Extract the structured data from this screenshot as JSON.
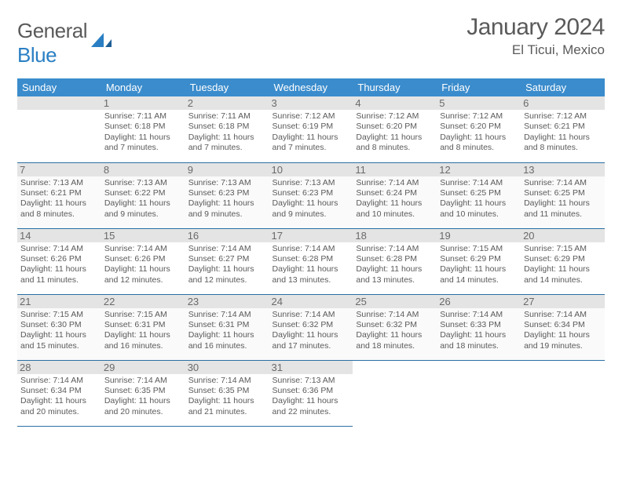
{
  "logo": {
    "text_a": "General",
    "text_b": "Blue"
  },
  "title": "January 2024",
  "location": "El Ticui, Mexico",
  "colors": {
    "header_bg": "#3b8ccc",
    "header_fg": "#ffffff",
    "rule": "#2a6fa5",
    "text": "#5a5a5a",
    "daybg": "#e4e4e4"
  },
  "weekdays": [
    "Sunday",
    "Monday",
    "Tuesday",
    "Wednesday",
    "Thursday",
    "Friday",
    "Saturday"
  ],
  "weeks": [
    [
      null,
      {
        "n": "1",
        "sr": "7:11 AM",
        "ss": "6:18 PM",
        "dl": "11 hours and 7 minutes."
      },
      {
        "n": "2",
        "sr": "7:11 AM",
        "ss": "6:18 PM",
        "dl": "11 hours and 7 minutes."
      },
      {
        "n": "3",
        "sr": "7:12 AM",
        "ss": "6:19 PM",
        "dl": "11 hours and 7 minutes."
      },
      {
        "n": "4",
        "sr": "7:12 AM",
        "ss": "6:20 PM",
        "dl": "11 hours and 8 minutes."
      },
      {
        "n": "5",
        "sr": "7:12 AM",
        "ss": "6:20 PM",
        "dl": "11 hours and 8 minutes."
      },
      {
        "n": "6",
        "sr": "7:12 AM",
        "ss": "6:21 PM",
        "dl": "11 hours and 8 minutes."
      }
    ],
    [
      {
        "n": "7",
        "sr": "7:13 AM",
        "ss": "6:21 PM",
        "dl": "11 hours and 8 minutes."
      },
      {
        "n": "8",
        "sr": "7:13 AM",
        "ss": "6:22 PM",
        "dl": "11 hours and 9 minutes."
      },
      {
        "n": "9",
        "sr": "7:13 AM",
        "ss": "6:23 PM",
        "dl": "11 hours and 9 minutes."
      },
      {
        "n": "10",
        "sr": "7:13 AM",
        "ss": "6:23 PM",
        "dl": "11 hours and 9 minutes."
      },
      {
        "n": "11",
        "sr": "7:14 AM",
        "ss": "6:24 PM",
        "dl": "11 hours and 10 minutes."
      },
      {
        "n": "12",
        "sr": "7:14 AM",
        "ss": "6:25 PM",
        "dl": "11 hours and 10 minutes."
      },
      {
        "n": "13",
        "sr": "7:14 AM",
        "ss": "6:25 PM",
        "dl": "11 hours and 11 minutes."
      }
    ],
    [
      {
        "n": "14",
        "sr": "7:14 AM",
        "ss": "6:26 PM",
        "dl": "11 hours and 11 minutes."
      },
      {
        "n": "15",
        "sr": "7:14 AM",
        "ss": "6:26 PM",
        "dl": "11 hours and 12 minutes."
      },
      {
        "n": "16",
        "sr": "7:14 AM",
        "ss": "6:27 PM",
        "dl": "11 hours and 12 minutes."
      },
      {
        "n": "17",
        "sr": "7:14 AM",
        "ss": "6:28 PM",
        "dl": "11 hours and 13 minutes."
      },
      {
        "n": "18",
        "sr": "7:14 AM",
        "ss": "6:28 PM",
        "dl": "11 hours and 13 minutes."
      },
      {
        "n": "19",
        "sr": "7:15 AM",
        "ss": "6:29 PM",
        "dl": "11 hours and 14 minutes."
      },
      {
        "n": "20",
        "sr": "7:15 AM",
        "ss": "6:29 PM",
        "dl": "11 hours and 14 minutes."
      }
    ],
    [
      {
        "n": "21",
        "sr": "7:15 AM",
        "ss": "6:30 PM",
        "dl": "11 hours and 15 minutes."
      },
      {
        "n": "22",
        "sr": "7:15 AM",
        "ss": "6:31 PM",
        "dl": "11 hours and 16 minutes."
      },
      {
        "n": "23",
        "sr": "7:14 AM",
        "ss": "6:31 PM",
        "dl": "11 hours and 16 minutes."
      },
      {
        "n": "24",
        "sr": "7:14 AM",
        "ss": "6:32 PM",
        "dl": "11 hours and 17 minutes."
      },
      {
        "n": "25",
        "sr": "7:14 AM",
        "ss": "6:32 PM",
        "dl": "11 hours and 18 minutes."
      },
      {
        "n": "26",
        "sr": "7:14 AM",
        "ss": "6:33 PM",
        "dl": "11 hours and 18 minutes."
      },
      {
        "n": "27",
        "sr": "7:14 AM",
        "ss": "6:34 PM",
        "dl": "11 hours and 19 minutes."
      }
    ],
    [
      {
        "n": "28",
        "sr": "7:14 AM",
        "ss": "6:34 PM",
        "dl": "11 hours and 20 minutes."
      },
      {
        "n": "29",
        "sr": "7:14 AM",
        "ss": "6:35 PM",
        "dl": "11 hours and 20 minutes."
      },
      {
        "n": "30",
        "sr": "7:14 AM",
        "ss": "6:35 PM",
        "dl": "11 hours and 21 minutes."
      },
      {
        "n": "31",
        "sr": "7:13 AM",
        "ss": "6:36 PM",
        "dl": "11 hours and 22 minutes."
      },
      null,
      null,
      null
    ]
  ]
}
